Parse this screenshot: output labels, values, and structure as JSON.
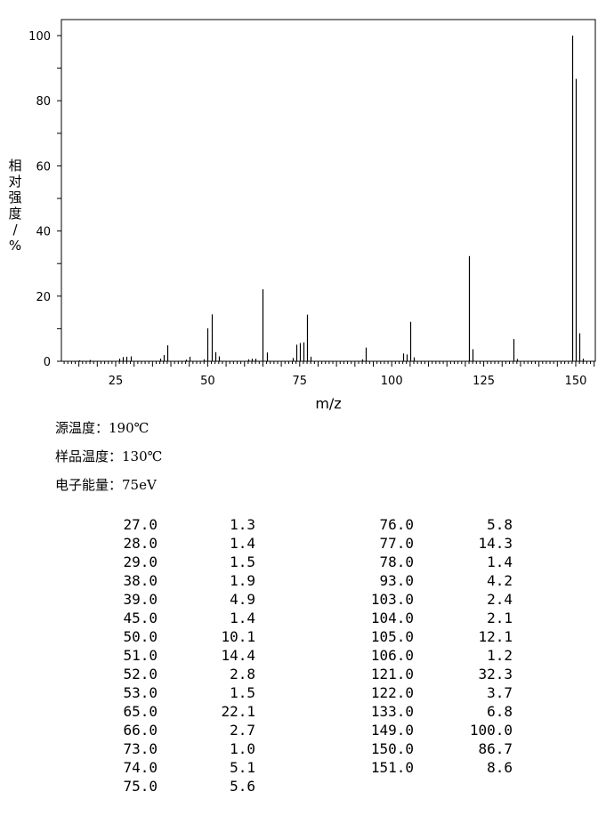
{
  "chart_data": {
    "type": "bar",
    "xlabel": "m/z",
    "ylabel": "相对强度/%",
    "xlim": [
      10,
      155
    ],
    "ylim": [
      0,
      105
    ],
    "x_ticks": [
      25,
      50,
      75,
      100,
      125,
      150
    ],
    "y_ticks": [
      0,
      20,
      40,
      60,
      80,
      100
    ],
    "grid": false,
    "peaks": [
      {
        "mz": 15,
        "i": 0.3
      },
      {
        "mz": 18,
        "i": 0.4
      },
      {
        "mz": 26,
        "i": 0.8
      },
      {
        "mz": 27,
        "i": 1.3
      },
      {
        "mz": 28,
        "i": 1.4
      },
      {
        "mz": 29,
        "i": 1.5
      },
      {
        "mz": 37,
        "i": 0.8
      },
      {
        "mz": 38,
        "i": 1.9
      },
      {
        "mz": 39,
        "i": 4.9
      },
      {
        "mz": 44,
        "i": 0.5
      },
      {
        "mz": 45,
        "i": 1.4
      },
      {
        "mz": 49,
        "i": 0.6
      },
      {
        "mz": 50,
        "i": 10.1
      },
      {
        "mz": 51,
        "i": 14.4
      },
      {
        "mz": 52,
        "i": 2.8
      },
      {
        "mz": 53,
        "i": 1.5
      },
      {
        "mz": 61,
        "i": 0.6
      },
      {
        "mz": 62,
        "i": 0.8
      },
      {
        "mz": 63,
        "i": 0.8
      },
      {
        "mz": 65,
        "i": 22.1
      },
      {
        "mz": 66,
        "i": 2.7
      },
      {
        "mz": 73,
        "i": 1.0
      },
      {
        "mz": 74,
        "i": 5.1
      },
      {
        "mz": 75,
        "i": 5.6
      },
      {
        "mz": 76,
        "i": 5.8
      },
      {
        "mz": 77,
        "i": 14.3
      },
      {
        "mz": 78,
        "i": 1.4
      },
      {
        "mz": 92,
        "i": 0.6
      },
      {
        "mz": 93,
        "i": 4.2
      },
      {
        "mz": 103,
        "i": 2.4
      },
      {
        "mz": 104,
        "i": 2.1
      },
      {
        "mz": 105,
        "i": 12.1
      },
      {
        "mz": 106,
        "i": 1.2
      },
      {
        "mz": 121,
        "i": 32.3
      },
      {
        "mz": 122,
        "i": 3.7
      },
      {
        "mz": 133,
        "i": 6.8
      },
      {
        "mz": 134,
        "i": 0.7
      },
      {
        "mz": 149,
        "i": 100.0
      },
      {
        "mz": 150,
        "i": 86.7
      },
      {
        "mz": 151,
        "i": 8.6
      },
      {
        "mz": 152,
        "i": 0.8
      }
    ]
  },
  "conditions": {
    "source_temp": "源温度：190℃",
    "sample_temp": "样品温度：130℃",
    "electron_energy": "电子能量：75eV"
  },
  "table": {
    "left": [
      [
        "27.0",
        "1.3"
      ],
      [
        "28.0",
        "1.4"
      ],
      [
        "29.0",
        "1.5"
      ],
      [
        "38.0",
        "1.9"
      ],
      [
        "39.0",
        "4.9"
      ],
      [
        "45.0",
        "1.4"
      ],
      [
        "50.0",
        "10.1"
      ],
      [
        "51.0",
        "14.4"
      ],
      [
        "52.0",
        "2.8"
      ],
      [
        "53.0",
        "1.5"
      ],
      [
        "65.0",
        "22.1"
      ],
      [
        "66.0",
        "2.7"
      ],
      [
        "73.0",
        "1.0"
      ],
      [
        "74.0",
        "5.1"
      ],
      [
        "75.0",
        "5.6"
      ]
    ],
    "right": [
      [
        "76.0",
        "5.8"
      ],
      [
        "77.0",
        "14.3"
      ],
      [
        "78.0",
        "1.4"
      ],
      [
        "93.0",
        "4.2"
      ],
      [
        "103.0",
        "2.4"
      ],
      [
        "104.0",
        "2.1"
      ],
      [
        "105.0",
        "12.1"
      ],
      [
        "106.0",
        "1.2"
      ],
      [
        "121.0",
        "32.3"
      ],
      [
        "122.0",
        "3.7"
      ],
      [
        "133.0",
        "6.8"
      ],
      [
        "149.0",
        "100.0"
      ],
      [
        "150.0",
        "86.7"
      ],
      [
        "151.0",
        "8.6"
      ]
    ]
  }
}
